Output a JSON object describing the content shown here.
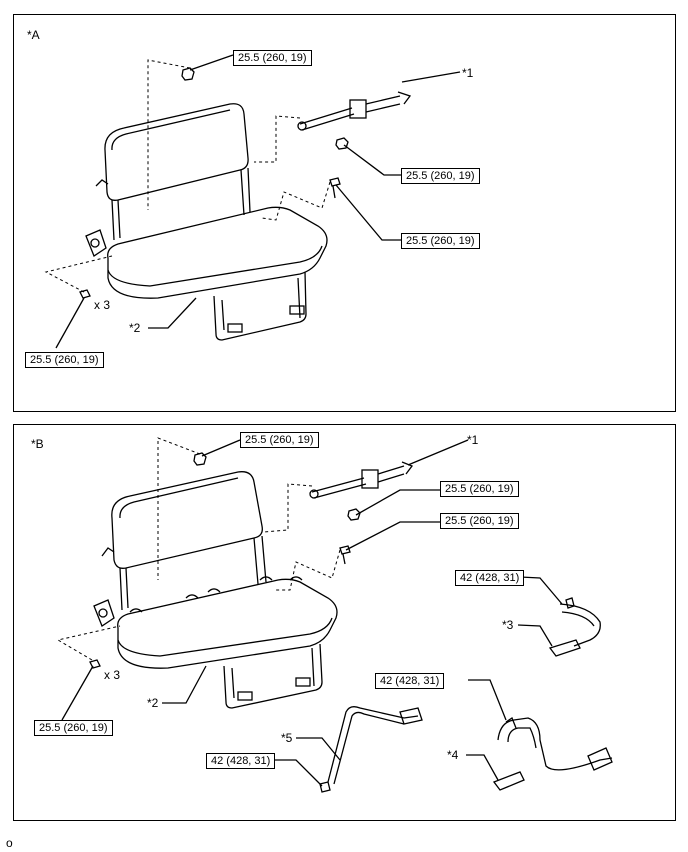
{
  "panel_a": {
    "label": "*A",
    "torque_top": "25.5 (260, 19)",
    "torque_belt_upper": "25.5 (260, 19)",
    "torque_belt_lower": "25.5 (260, 19)",
    "torque_bottom": "25.5 (260, 19)",
    "callout_1": "*1",
    "callout_2": "*2",
    "qty": "x 3"
  },
  "panel_b": {
    "label": "*B",
    "torque_top": "25.5 (260, 19)",
    "torque_belt_upper": "25.5 (260, 19)",
    "torque_belt_lower": "25.5 (260, 19)",
    "torque_bottom": "25.5 (260, 19)",
    "torque_3": "42 (428, 31)",
    "torque_4": "42 (428, 31)",
    "torque_5": "42 (428, 31)",
    "callout_1": "*1",
    "callout_2": "*2",
    "callout_3": "*3",
    "callout_4": "*4",
    "callout_5": "*5",
    "qty": "x 3"
  },
  "footer_text": "o"
}
